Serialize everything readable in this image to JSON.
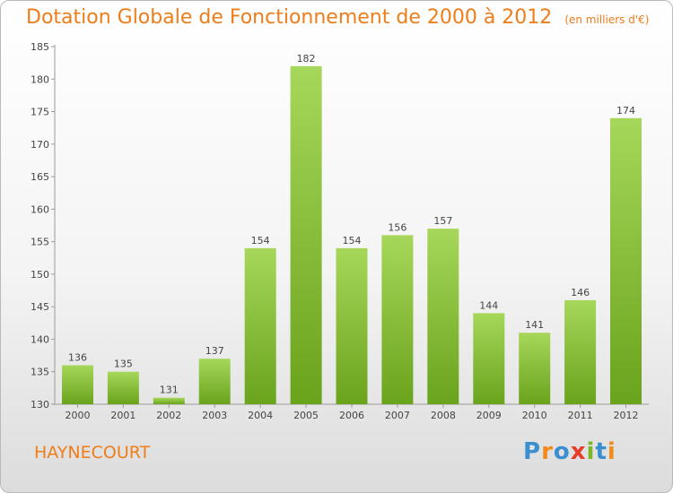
{
  "header": {
    "title": "Dotation Globale de Fonctionnement de 2000 à 2012",
    "unit": "(en milliers d'€)"
  },
  "footer": {
    "commune": "HAYNECOURT",
    "logo_text": "Proxiti"
  },
  "colors": {
    "title": "#ee7d1a",
    "bar_light": "#a6d75a",
    "bar_dark": "#6aa31c",
    "logo": [
      "#3a8fd0",
      "#f28a1e",
      "#3a8fd0",
      "#e83c2a",
      "#7ab628",
      "#3a8fd0",
      "#f28a1e"
    ]
  },
  "chart_data": {
    "type": "bar",
    "categories": [
      "2000",
      "2001",
      "2002",
      "2003",
      "2004",
      "2005",
      "2006",
      "2007",
      "2008",
      "2009",
      "2010",
      "2011",
      "2012"
    ],
    "values": [
      136,
      135,
      131,
      137,
      154,
      182,
      154,
      156,
      157,
      144,
      141,
      146,
      174
    ],
    "ylim": [
      130,
      185
    ],
    "yticks": [
      130,
      135,
      140,
      145,
      150,
      155,
      160,
      165,
      170,
      175,
      180,
      185
    ],
    "title": "Dotation Globale de Fonctionnement de 2000 à 2012",
    "xlabel": "",
    "ylabel": "",
    "grid": false,
    "data_labels": true
  }
}
